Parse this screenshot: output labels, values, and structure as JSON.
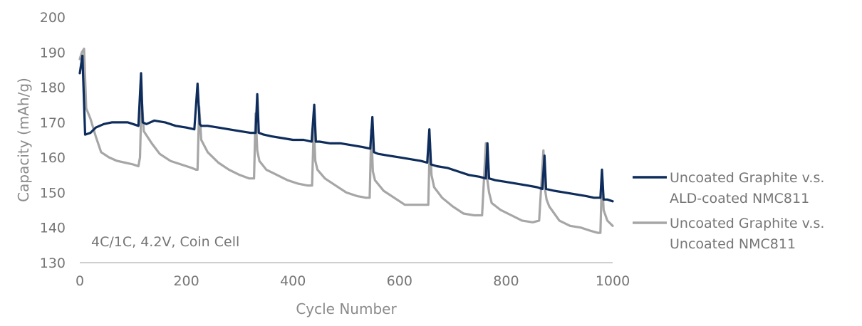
{
  "chart_data": {
    "type": "line",
    "title": "",
    "xlabel": "Cycle Number",
    "ylabel": "Capacity (mAh/g)",
    "xlim": [
      0,
      1000
    ],
    "ylim": [
      130,
      200
    ],
    "xticks": [
      0,
      200,
      400,
      600,
      800,
      1000
    ],
    "yticks": [
      130,
      140,
      150,
      160,
      170,
      180,
      190,
      200
    ],
    "grid": false,
    "legend_position": "right",
    "annotation": "4C/1C, 4.2V, Coin Cell",
    "series": [
      {
        "name": "Uncoated Graphite v.s. ALD-coated NMC811",
        "legend_lines": [
          "Uncoated Graphite v.s.",
          "ALD-coated NMC811"
        ],
        "color": "#0e2d5c",
        "x": [
          0,
          5,
          10,
          20,
          30,
          45,
          60,
          75,
          90,
          100,
          110,
          115,
          118,
          125,
          140,
          160,
          180,
          200,
          215,
          221,
          225,
          228,
          240,
          260,
          280,
          300,
          320,
          330,
          333,
          336,
          345,
          360,
          380,
          400,
          420,
          435,
          440,
          443,
          450,
          470,
          490,
          510,
          530,
          545,
          549,
          552,
          560,
          580,
          600,
          620,
          640,
          652,
          656,
          659,
          670,
          690,
          710,
          730,
          750,
          762,
          765,
          768,
          780,
          800,
          820,
          840,
          858,
          868,
          872,
          875,
          890,
          910,
          930,
          950,
          965,
          977,
          980,
          983,
          990,
          1000
        ],
        "values": [
          184,
          189,
          166.5,
          167,
          168.5,
          169.5,
          170,
          170,
          170,
          169.5,
          169,
          184,
          170,
          169.5,
          170.5,
          170,
          169,
          168.5,
          168,
          181,
          169.5,
          169,
          169,
          168.5,
          168,
          167.5,
          167,
          167,
          178,
          167,
          166.5,
          166,
          165.5,
          165,
          165,
          164.5,
          175,
          164.5,
          164.5,
          164,
          164,
          163.5,
          163,
          162.5,
          171.5,
          161.5,
          161,
          160.5,
          160,
          159.5,
          159,
          158.5,
          168,
          158,
          157.5,
          157,
          156,
          155,
          154.5,
          154,
          164,
          154,
          153.5,
          153,
          152.5,
          152,
          151.5,
          151,
          160.5,
          151,
          150.5,
          150,
          149.5,
          149,
          148.5,
          148.5,
          156.5,
          148,
          148,
          147.5
        ]
      },
      {
        "name": "Uncoated Graphite v.s. Uncoated NMC811",
        "legend_lines": [
          "Uncoated Graphite v.s.",
          "Uncoated NMC811"
        ],
        "color": "#a6a6a6",
        "x": [
          0,
          4,
          8,
          12,
          20,
          30,
          40,
          55,
          70,
          85,
          100,
          110,
          113,
          116,
          120,
          135,
          150,
          170,
          190,
          210,
          218,
          221,
          224,
          228,
          240,
          260,
          280,
          300,
          318,
          327,
          330,
          333,
          337,
          350,
          370,
          390,
          410,
          427,
          436,
          439,
          442,
          446,
          460,
          480,
          500,
          520,
          537,
          544,
          547,
          550,
          554,
          570,
          590,
          610,
          630,
          648,
          654,
          657,
          660,
          665,
          680,
          700,
          720,
          740,
          755,
          762,
          765,
          768,
          773,
          790,
          810,
          830,
          850,
          862,
          870,
          873,
          876,
          881,
          900,
          920,
          940,
          960,
          972,
          977,
          980,
          983,
          990,
          1000
        ],
        "values": [
          188,
          190,
          191,
          174,
          171,
          166,
          161.5,
          160,
          159,
          158.5,
          158,
          157.5,
          160,
          177.5,
          167.5,
          164,
          161,
          159,
          158,
          157,
          156.5,
          156.5,
          174.5,
          165,
          161.5,
          158.5,
          156.5,
          155,
          154,
          154,
          172.5,
          162,
          159,
          156.5,
          155,
          153.5,
          152.5,
          152,
          152,
          169,
          159,
          156.5,
          154,
          152,
          150,
          149,
          148.5,
          148.5,
          168,
          156,
          153.5,
          150.5,
          148.5,
          146.5,
          146.5,
          146.5,
          146.5,
          165,
          155,
          151.5,
          148.5,
          146,
          144,
          143.5,
          143.5,
          164,
          153.5,
          150,
          147,
          145,
          143.5,
          142,
          141.5,
          142,
          162,
          151,
          148,
          146,
          142,
          140.5,
          140,
          139,
          138.5,
          138.5,
          155,
          145,
          142,
          140.5
        ]
      }
    ]
  }
}
